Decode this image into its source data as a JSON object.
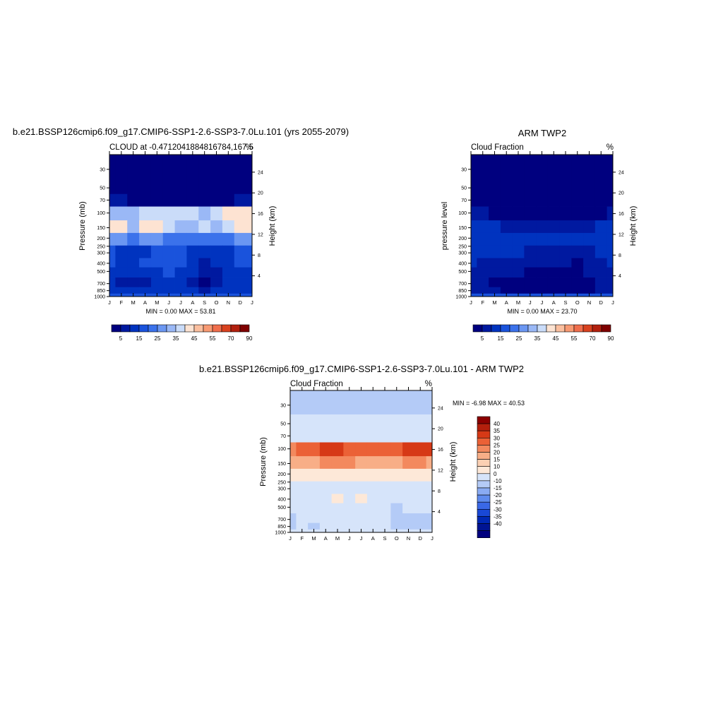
{
  "months": [
    "J",
    "F",
    "M",
    "A",
    "M",
    "J",
    "J",
    "A",
    "S",
    "O",
    "N",
    "D",
    "J"
  ],
  "pressure_ticks": [
    "30",
    "50",
    "70",
    "100",
    "150",
    "200",
    "250",
    "300",
    "400",
    "500",
    "700",
    "850",
    "1000"
  ],
  "height_ticks": [
    "24",
    "20",
    "16",
    "12",
    "8",
    "4"
  ],
  "colors": {
    "abs_palette": [
      "#00007f",
      "#0019a0",
      "#0033bf",
      "#1a53dc",
      "#3b72eb",
      "#6b97f2",
      "#9ab8f6",
      "#cadcf9",
      "#fde3d2",
      "#fbbf9f",
      "#f89a73",
      "#f06e4c",
      "#d9421f",
      "#b2200e",
      "#7f0000"
    ],
    "diff_palette": [
      "#00007f",
      "#001493",
      "#0028b4",
      "#1948d6",
      "#3a68e6",
      "#5f8bee",
      "#8aabf3",
      "#b4cbf7",
      "#d6e4fa",
      "#fde8d8",
      "#fbd0b3",
      "#f8ae87",
      "#f3895e",
      "#eb6136",
      "#d63916",
      "#b31f0c",
      "#8b0000"
    ]
  },
  "panel_model": {
    "title": "b.e21.BSSP126cmip6.f09_g17.CMIP6-SSP1-2.6-SSP3-7.0Lu.101 (yrs 2055-2079)",
    "subtitle_left": "CLOUD at -0.4712041884816784,167.5",
    "subtitle_right": "%",
    "ylabel_left": "Pressure (mb)",
    "ylabel_right": "Height (km)",
    "stats": "MIN =   0.00 MAX =  53.81"
  },
  "panel_obs": {
    "title": "ARM TWP2",
    "subtitle_left": "Cloud Fraction",
    "subtitle_right": "%",
    "ylabel_left": "pressure level",
    "ylabel_right": "Height (km)",
    "stats": "MIN =   0.00 MAX =  23.70"
  },
  "colorbar_abs": {
    "labels": [
      "5",
      "15",
      "25",
      "35",
      "45",
      "55",
      "70",
      "90"
    ]
  },
  "panel_diff": {
    "title": "b.e21.BSSP126cmip6.f09_g17.CMIP6-SSP1-2.6-SSP3-7.0Lu.101 - ARM TWP2",
    "subtitle_left": "Cloud Fraction",
    "subtitle_right": "%",
    "ylabel_left": "Pressure (mb)",
    "ylabel_right": "Height (km)",
    "stats": "MIN =  -6.98 MAX =  40.53"
  },
  "colorbar_diff": {
    "labels": [
      "40",
      "35",
      "30",
      "25",
      "20",
      "15",
      "10",
      "0",
      "-10",
      "-15",
      "-20",
      "-25",
      "-30",
      "-35",
      "-40"
    ]
  },
  "chart_data": [
    {
      "type": "heatmap",
      "title": "CLOUD at -0.4712041884816784,167.5",
      "xlabel": "",
      "ylabel": "Pressure (mb)",
      "y2label": "Height (km)",
      "x": [
        "J",
        "F",
        "M",
        "A",
        "M",
        "J",
        "J",
        "A",
        "S",
        "O",
        "N",
        "D",
        "J"
      ],
      "y": [
        30,
        50,
        70,
        100,
        150,
        200,
        300,
        400,
        500,
        700,
        850,
        1000
      ],
      "units": "%",
      "min": 0.0,
      "max": 53.81,
      "values": [
        [
          1,
          1,
          1,
          1,
          1,
          1,
          1,
          1,
          1,
          1,
          1,
          1,
          1
        ],
        [
          2,
          2,
          2,
          2,
          2,
          2,
          2,
          2,
          2,
          2,
          2,
          2,
          2
        ],
        [
          8,
          6,
          4,
          3,
          3,
          3,
          3,
          3,
          3,
          3,
          4,
          6,
          8
        ],
        [
          32,
          33,
          34,
          36,
          38,
          38,
          38,
          36,
          32,
          36,
          40,
          42,
          40
        ],
        [
          44,
          40,
          34,
          40,
          42,
          38,
          33,
          30,
          35,
          34,
          38,
          42,
          44
        ],
        [
          28,
          26,
          24,
          25,
          26,
          24,
          22,
          20,
          22,
          22,
          24,
          26,
          28
        ],
        [
          18,
          14,
          12,
          12,
          16,
          16,
          15,
          12,
          10,
          12,
          14,
          16,
          18
        ],
        [
          16,
          14,
          14,
          15,
          16,
          17,
          16,
          12,
          8,
          10,
          14,
          16,
          16
        ],
        [
          14,
          12,
          12,
          13,
          14,
          15,
          14,
          10,
          6,
          8,
          12,
          14,
          14
        ],
        [
          10,
          8,
          7,
          9,
          12,
          14,
          12,
          8,
          4,
          6,
          10,
          10,
          10
        ],
        [
          12,
          10,
          10,
          12,
          12,
          12,
          12,
          10,
          8,
          10,
          12,
          12,
          12
        ],
        [
          18,
          18,
          16,
          16,
          16,
          16,
          16,
          16,
          16,
          16,
          16,
          18,
          18
        ]
      ]
    },
    {
      "type": "heatmap",
      "title": "Cloud Fraction",
      "xlabel": "",
      "ylabel": "pressure level",
      "y2label": "Height (km)",
      "x": [
        "J",
        "F",
        "M",
        "A",
        "M",
        "J",
        "J",
        "A",
        "S",
        "O",
        "N",
        "D",
        "J"
      ],
      "y": [
        30,
        50,
        70,
        100,
        150,
        200,
        300,
        400,
        500,
        700,
        850,
        1000
      ],
      "units": "%",
      "min": 0.0,
      "max": 23.7,
      "values": [
        [
          0,
          0,
          0,
          0,
          0,
          0,
          0,
          0,
          0,
          0,
          0,
          0,
          0
        ],
        [
          0,
          0,
          0,
          0,
          0,
          0,
          0,
          0,
          0,
          0,
          0,
          0,
          0
        ],
        [
          0,
          0,
          0,
          0,
          0,
          0,
          0,
          0,
          0,
          0,
          0,
          0,
          0
        ],
        [
          6,
          5,
          4,
          3,
          2,
          1,
          1,
          1,
          1,
          1,
          2,
          4,
          6
        ],
        [
          12,
          11,
          10,
          9,
          9,
          8,
          7,
          6,
          6,
          6,
          8,
          10,
          12
        ],
        [
          14,
          13,
          14,
          12,
          13,
          12,
          11,
          10,
          10,
          11,
          12,
          13,
          14
        ],
        [
          12,
          12,
          11,
          12,
          10,
          9,
          9,
          9,
          8,
          9,
          9,
          10,
          11
        ],
        [
          10,
          8,
          9,
          8,
          7,
          6,
          6,
          6,
          5,
          4,
          6,
          8,
          10
        ],
        [
          8,
          7,
          7,
          6,
          5,
          4,
          4,
          4,
          4,
          3,
          5,
          6,
          8
        ],
        [
          6,
          5,
          4,
          3,
          2,
          3,
          2,
          3,
          4,
          2,
          4,
          5,
          6
        ],
        [
          6,
          6,
          5,
          4,
          4,
          4,
          4,
          4,
          4,
          4,
          4,
          5,
          6
        ],
        [
          16,
          16,
          16,
          16,
          16,
          16,
          16,
          16,
          16,
          16,
          16,
          16,
          16
        ]
      ]
    },
    {
      "type": "heatmap",
      "title": "Cloud Fraction",
      "xlabel": "",
      "ylabel": "Pressure (mb)",
      "y2label": "Height (km)",
      "x": [
        "J",
        "F",
        "M",
        "A",
        "M",
        "J",
        "J",
        "A",
        "S",
        "O",
        "N",
        "D",
        "J"
      ],
      "y": [
        30,
        50,
        70,
        100,
        150,
        200,
        300,
        400,
        500,
        700,
        850,
        1000
      ],
      "units": "%",
      "min": -6.98,
      "max": 40.53,
      "values": [
        [
          -2,
          -2,
          -2,
          -2,
          -2,
          -2,
          -2,
          -2,
          -2,
          -2,
          -2,
          -2,
          -2
        ],
        [
          3,
          3,
          3,
          3,
          3,
          3,
          3,
          3,
          3,
          3,
          3,
          3,
          3
        ],
        [
          6,
          6,
          5,
          5,
          5,
          5,
          5,
          5,
          5,
          5,
          5,
          6,
          6
        ],
        [
          28,
          30,
          32,
          35,
          36,
          34,
          32,
          30,
          31,
          32,
          36,
          38,
          35
        ],
        [
          24,
          24,
          22,
          26,
          26,
          26,
          24,
          23,
          24,
          24,
          26,
          26,
          24
        ],
        [
          12,
          10,
          10,
          12,
          12,
          12,
          11,
          10,
          10,
          10,
          12,
          12,
          12
        ],
        [
          6,
          5,
          5,
          4,
          5,
          6,
          6,
          6,
          5,
          4,
          5,
          5,
          6
        ],
        [
          5,
          4,
          4,
          6,
          12,
          8,
          12,
          5,
          4,
          4,
          4,
          4,
          5
        ],
        [
          4,
          4,
          3,
          4,
          5,
          5,
          5,
          4,
          3,
          -2,
          4,
          4,
          4
        ],
        [
          -2,
          3,
          3,
          4,
          4,
          4,
          4,
          4,
          3,
          -2,
          -2,
          -2,
          -2
        ],
        [
          -2,
          3,
          -2,
          3,
          3,
          3,
          3,
          3,
          3,
          -2,
          -2,
          -2,
          -2
        ],
        [
          2,
          2,
          2,
          2,
          2,
          2,
          2,
          2,
          2,
          2,
          2,
          2,
          2
        ]
      ]
    }
  ]
}
